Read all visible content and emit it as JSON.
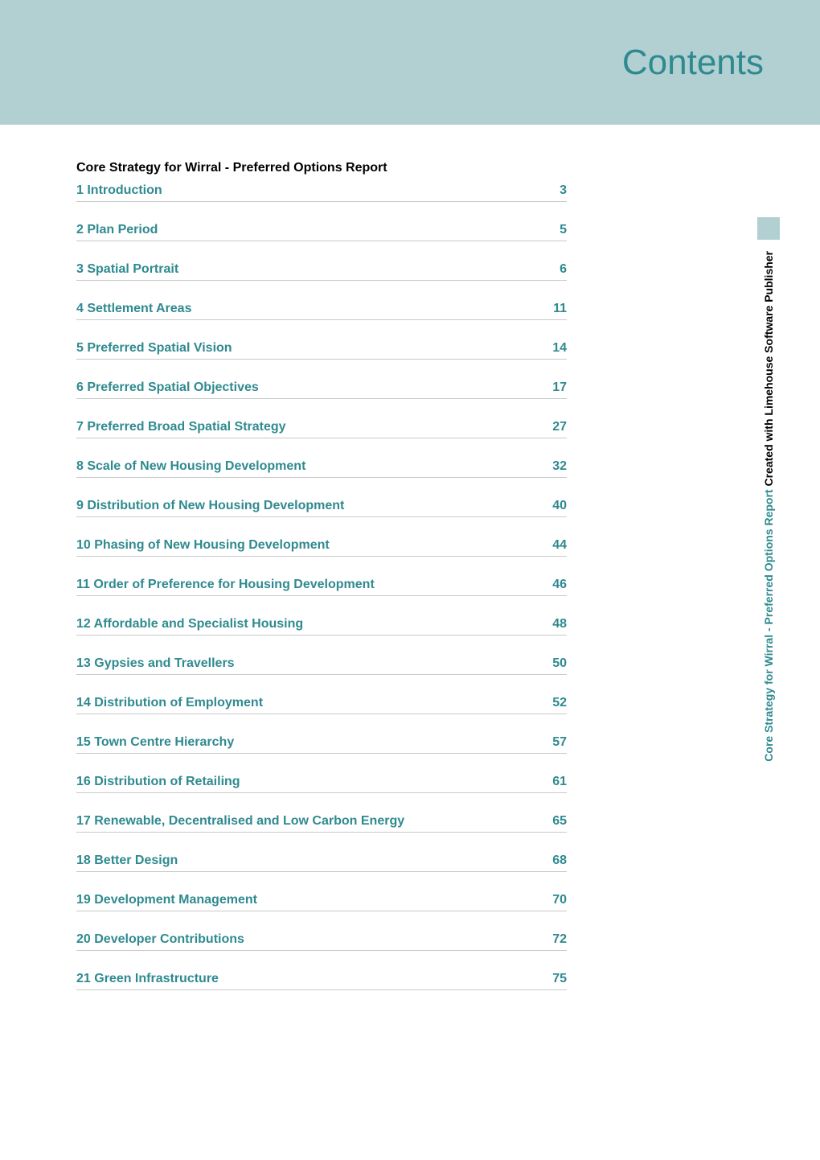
{
  "header": {
    "title": "Contents"
  },
  "section_title": "Core Strategy for Wirral - Preferred Options Report",
  "toc": [
    {
      "label": "1 Introduction",
      "page": "3"
    },
    {
      "label": "2 Plan Period",
      "page": "5"
    },
    {
      "label": "3 Spatial Portrait",
      "page": "6"
    },
    {
      "label": "4 Settlement Areas",
      "page": "11"
    },
    {
      "label": "5 Preferred Spatial Vision",
      "page": "14"
    },
    {
      "label": "6 Preferred Spatial Objectives",
      "page": "17"
    },
    {
      "label": "7 Preferred Broad Spatial Strategy",
      "page": "27"
    },
    {
      "label": "8 Scale of New Housing Development",
      "page": "32"
    },
    {
      "label": "9 Distribution of New Housing Development",
      "page": "40"
    },
    {
      "label": "10 Phasing of New Housing Development",
      "page": "44"
    },
    {
      "label": "11 Order of Preference for Housing Development",
      "page": "46"
    },
    {
      "label": "12 Affordable and Specialist Housing",
      "page": "48"
    },
    {
      "label": "13 Gypsies and Travellers",
      "page": "50"
    },
    {
      "label": "14 Distribution of Employment",
      "page": "52"
    },
    {
      "label": "15 Town Centre Hierarchy",
      "page": "57"
    },
    {
      "label": "16 Distribution of Retailing",
      "page": "61"
    },
    {
      "label": "17 Renewable, Decentralised and Low Carbon Energy",
      "page": "65"
    },
    {
      "label": "18 Better Design",
      "page": "68"
    },
    {
      "label": "19 Development Management",
      "page": "70"
    },
    {
      "label": "20 Developer Contributions",
      "page": "72"
    },
    {
      "label": "21 Green Infrastructure",
      "page": "75"
    }
  ],
  "side": {
    "teal": "Core Strategy for Wirral - Preferred Options Report ",
    "black": "Created with Limehouse Software Publisher"
  },
  "colors": {
    "band_bg": "#b2d0d2",
    "accent": "#2f8a8f",
    "rule": "#c9c9c9"
  },
  "typography": {
    "header_fontsize": 44,
    "body_fontsize": 16,
    "side_fontsize": 14
  }
}
